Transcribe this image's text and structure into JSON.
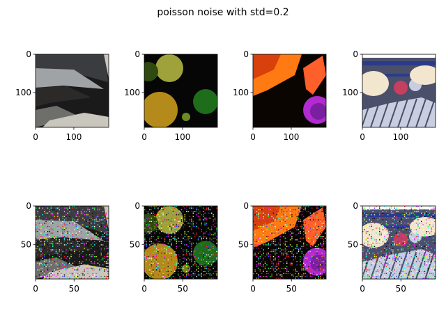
{
  "figure": {
    "title": "poisson noise with std=0.2"
  },
  "chart_data": [
    {
      "type": "image",
      "row": 1,
      "col": 1,
      "content": "rocky-stone-surface",
      "noisy": false,
      "xlim": [
        0,
        191
      ],
      "ylim": [
        191,
        0
      ],
      "xticks": [
        0,
        100
      ],
      "yticks": [
        0,
        100
      ],
      "palette": [
        "#1a1a1a",
        "#3a3c40",
        "#6e6e6a",
        "#9fa3a6",
        "#c9c6be",
        "#2b2a28"
      ]
    },
    {
      "type": "image",
      "row": 1,
      "col": 2,
      "content": "limes-and-lemons",
      "noisy": false,
      "xlim": [
        0,
        191
      ],
      "ylim": [
        191,
        0
      ],
      "xticks": [
        0,
        100
      ],
      "yticks": [
        0,
        100
      ],
      "palette": [
        "#050605",
        "#2e4a10",
        "#6f8a1e",
        "#9fa23a",
        "#1d6d1a",
        "#b48a1a"
      ]
    },
    {
      "type": "image",
      "row": 1,
      "col": 3,
      "content": "orange-flower-and-purple",
      "noisy": false,
      "xlim": [
        0,
        191
      ],
      "ylim": [
        191,
        0
      ],
      "xticks": [
        0,
        100
      ],
      "yticks": [
        0,
        100
      ],
      "palette": [
        "#ff7a12",
        "#d8400c",
        "#ff5f2a",
        "#7a1fa0",
        "#b22ad0",
        "#0a0500"
      ]
    },
    {
      "type": "image",
      "row": 1,
      "col": 4,
      "content": "rodeo-crowd-with-cowboy-hat",
      "noisy": false,
      "xlim": [
        0,
        191
      ],
      "ylim": [
        191,
        0
      ],
      "xticks": [
        0,
        100
      ],
      "yticks": [
        0,
        100
      ],
      "palette": [
        "#f3e6cf",
        "#2a3a8c",
        "#4a4f6a",
        "#c8cde0",
        "#c54060",
        "#ffffff"
      ]
    },
    {
      "type": "image",
      "row": 2,
      "col": 1,
      "content": "rocky-stone-surface",
      "noisy": true,
      "xlim": [
        0,
        95
      ],
      "ylim": [
        95,
        0
      ],
      "xticks": [
        0,
        50
      ],
      "yticks": [
        0,
        50
      ],
      "palette": [
        "#1a1a1a",
        "#3a3c40",
        "#6e6e6a",
        "#9fa3a6",
        "#c9c6be",
        "#2b2a28"
      ]
    },
    {
      "type": "image",
      "row": 2,
      "col": 2,
      "content": "limes-and-lemons",
      "noisy": true,
      "xlim": [
        0,
        95
      ],
      "ylim": [
        95,
        0
      ],
      "xticks": [
        0,
        50
      ],
      "yticks": [
        0,
        50
      ],
      "palette": [
        "#050605",
        "#2e4a10",
        "#6f8a1e",
        "#9fa23a",
        "#1d6d1a",
        "#b48a1a"
      ]
    },
    {
      "type": "image",
      "row": 2,
      "col": 3,
      "content": "orange-flower-and-purple",
      "noisy": true,
      "xlim": [
        0,
        95
      ],
      "ylim": [
        95,
        0
      ],
      "xticks": [
        0,
        50
      ],
      "yticks": [
        0,
        50
      ],
      "palette": [
        "#ff7a12",
        "#d8400c",
        "#ff5f2a",
        "#7a1fa0",
        "#b22ad0",
        "#0a0500"
      ]
    },
    {
      "type": "image",
      "row": 2,
      "col": 4,
      "content": "rodeo-crowd-with-cowboy-hat",
      "noisy": true,
      "xlim": [
        0,
        95
      ],
      "ylim": [
        95,
        0
      ],
      "xticks": [
        0,
        50
      ],
      "yticks": [
        0,
        50
      ],
      "palette": [
        "#f3e6cf",
        "#2a3a8c",
        "#4a4f6a",
        "#c8cde0",
        "#c54060",
        "#ffffff"
      ]
    }
  ]
}
